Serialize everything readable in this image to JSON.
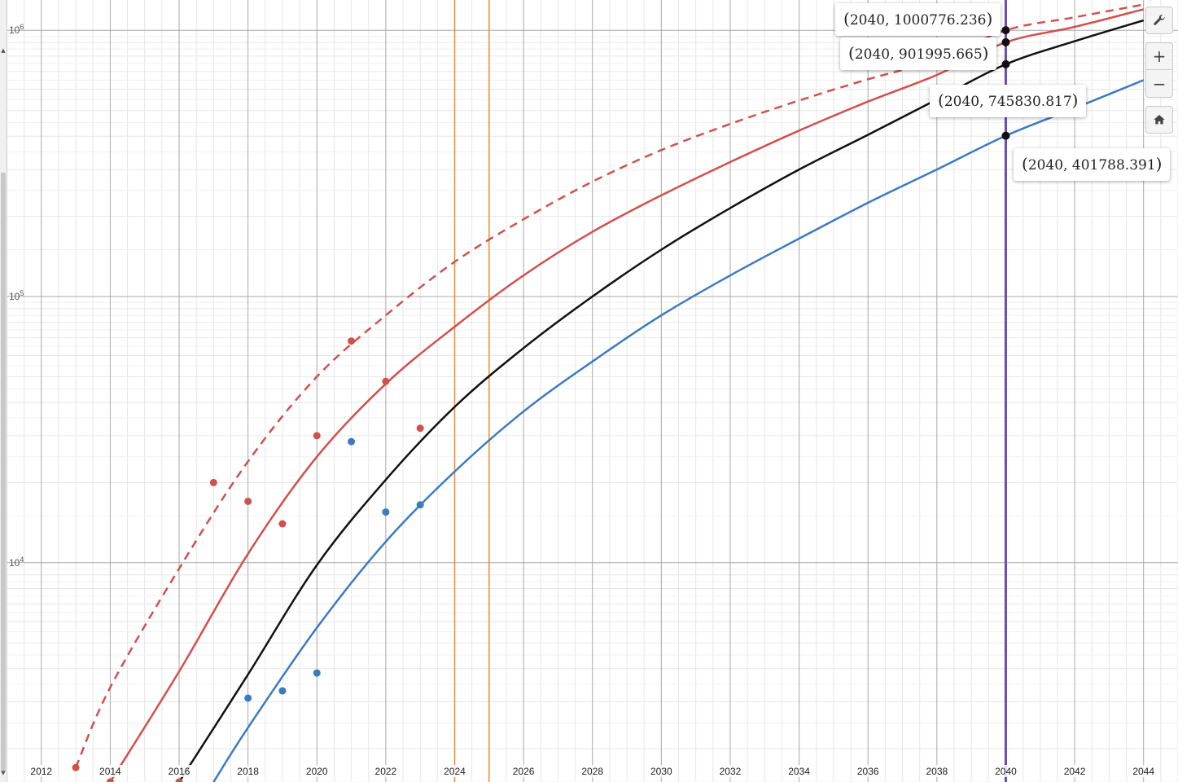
{
  "graph": {
    "x_ticks": [
      "2012",
      "2014",
      "2016",
      "2018",
      "2020",
      "2022",
      "2024",
      "2026",
      "2028",
      "2030",
      "2032",
      "2034",
      "2036",
      "2038",
      "2040",
      "2042",
      "2044"
    ],
    "y_ticks": [
      {
        "base": "10",
        "exp": "6"
      },
      {
        "base": "10",
        "exp": "5"
      },
      {
        "base": "10",
        "exp": "4"
      }
    ],
    "x_range": [
      2010.8,
      2045
    ],
    "y_range_log": [
      1500,
      1300000
    ],
    "y_scale": "log",
    "grid": true,
    "vertical_lines": [
      {
        "x": 2024,
        "color": "#f08a2c"
      },
      {
        "x": 2025,
        "color": "#f08a2c"
      },
      {
        "x": 2040,
        "color": "#6b48b8"
      }
    ],
    "curve_colors": {
      "red": "#d1504e",
      "black": "#111111",
      "blue": "#3c7ac0"
    }
  },
  "chart_data": {
    "type": "scatter",
    "xscale": "linear",
    "yscale": "log",
    "xlim": [
      2010.8,
      2045
    ],
    "ylim": [
      1500,
      1300000
    ],
    "series": [
      {
        "color": "#d1504e",
        "style": "dashed",
        "x": [
          2013,
          2014,
          2016,
          2018,
          2020,
          2022,
          2024,
          2026,
          2028,
          2030,
          2032,
          2034,
          2036,
          2038,
          2040,
          2042,
          2044
        ],
        "y": [
          1700,
          3400,
          9500,
          24000,
          50000,
          85000,
          135000,
          195000,
          270000,
          355000,
          445000,
          545000,
          655000,
          775000,
          1000776.236,
          1120000,
          1250000
        ]
      },
      {
        "color": "#d1504e",
        "style": "solid",
        "x": [
          2014,
          2016,
          2018,
          2020,
          2022,
          2024,
          2026,
          2028,
          2030,
          2032,
          2034,
          2036,
          2038,
          2040,
          2042,
          2044
        ],
        "y": [
          1500,
          3900,
          10800,
          25000,
          47000,
          77000,
          120000,
          175000,
          240000,
          320000,
          420000,
          540000,
          680000,
          901995.665,
          1030000,
          1200000
        ]
      },
      {
        "color": "#111111",
        "style": "solid",
        "x": [
          2016,
          2018,
          2020,
          2022,
          2024,
          2026,
          2028,
          2030,
          2032,
          2034,
          2036,
          2038,
          2040,
          2042,
          2044
        ],
        "y": [
          1500,
          3800,
          9800,
          20500,
          38500,
          64000,
          100000,
          150000,
          215000,
          300000,
          405000,
          550000,
          745830.817,
          910000,
          1090000
        ]
      },
      {
        "color": "#3c7ac0",
        "style": "solid",
        "x": [
          2017,
          2018,
          2020,
          2022,
          2024,
          2026,
          2028,
          2030,
          2032,
          2034,
          2036,
          2038,
          2040,
          2042,
          2044
        ],
        "y": [
          1500,
          2400,
          5700,
          12000,
          22000,
          37000,
          57000,
          85000,
          120000,
          165000,
          225000,
          300000,
          401788.391,
          510000,
          650000
        ]
      },
      {
        "color": "#d1504e",
        "style": "points",
        "x": [
          2013,
          2014,
          2016,
          2017,
          2018,
          2019,
          2020,
          2021,
          2022,
          2023
        ],
        "y": [
          1700,
          1500,
          1500,
          20000,
          17000,
          14000,
          30000,
          68000,
          48000,
          32000
        ]
      },
      {
        "color": "#3c7ac0",
        "style": "points",
        "x": [
          2018,
          2019,
          2020,
          2021,
          2022,
          2023
        ],
        "y": [
          3100,
          3300,
          3850,
          28500,
          15500,
          16500
        ]
      }
    ],
    "highlight_points": [
      {
        "x": 2040,
        "y": 1000776.236
      },
      {
        "x": 2040,
        "y": 901995.665
      },
      {
        "x": 2040,
        "y": 745830.817
      },
      {
        "x": 2040,
        "y": 401788.391
      }
    ]
  },
  "labels": [
    {
      "x": "2040",
      "y": "1000776.236"
    },
    {
      "x": "2040",
      "y": "901995.665"
    },
    {
      "x": "2040",
      "y": "745830.817"
    },
    {
      "x": "2040",
      "y": "401788.391"
    }
  ],
  "controls": {
    "wrench": "wrench-icon",
    "zoom_in": "+",
    "zoom_out": "−",
    "home": "home-icon"
  }
}
